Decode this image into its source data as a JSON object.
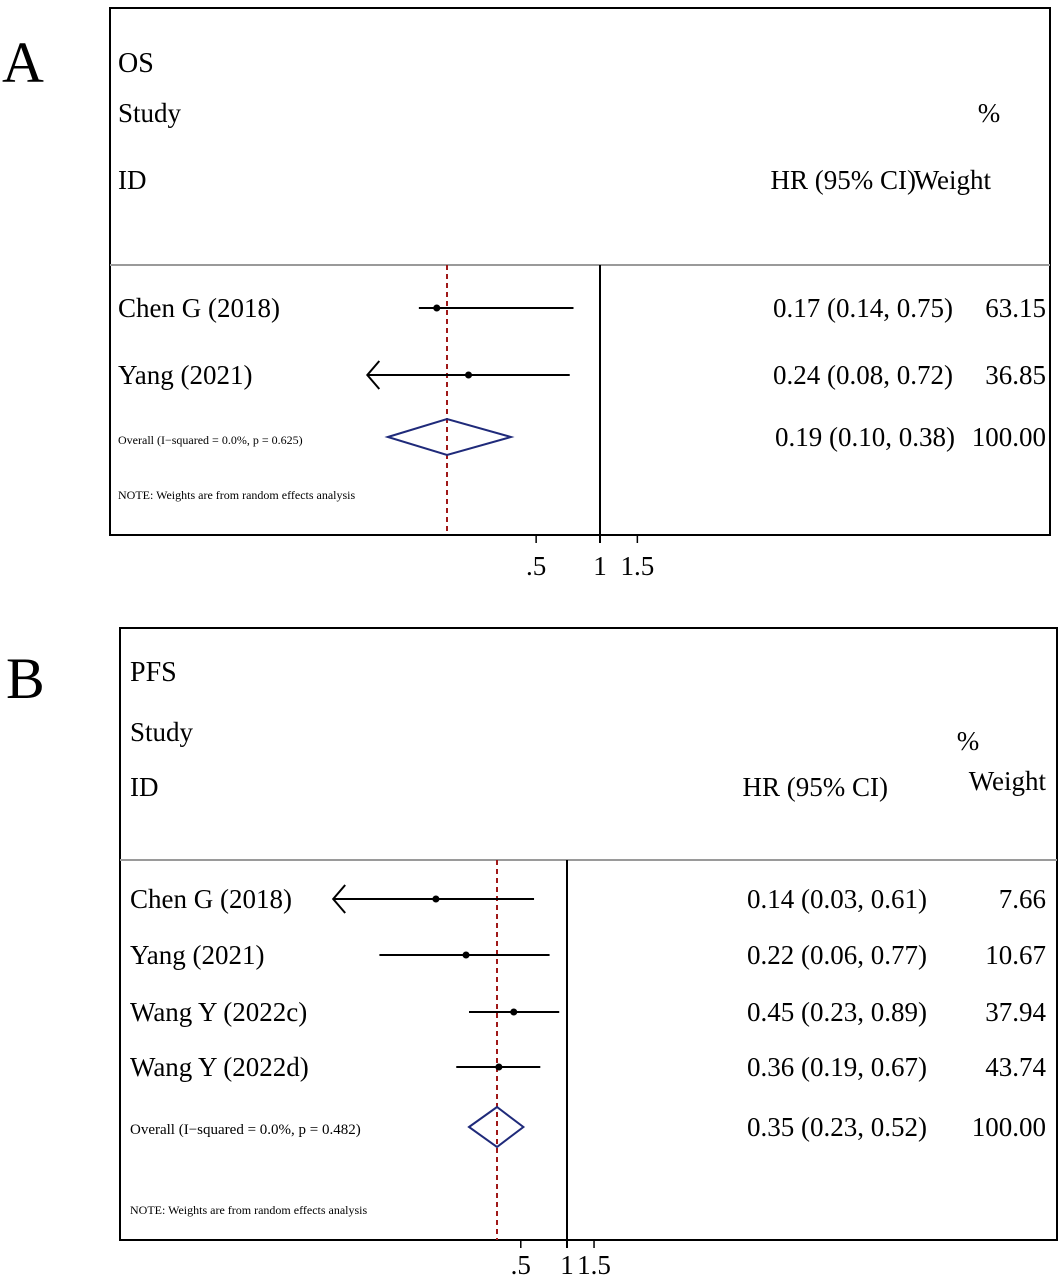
{
  "chart_data": [
    {
      "type": "forest",
      "panel_label": "A",
      "title": "OS",
      "header": {
        "study_line1": "Study",
        "study_line2": "ID",
        "hr_label": "HR (95% CI)",
        "weight_line1": "%",
        "weight_line2": "Weight"
      },
      "studies": [
        {
          "name": "Chen G (2018)",
          "hr": 0.17,
          "lower": 0.14,
          "upper": 0.75,
          "hr_text": "0.17 (0.14, 0.75)",
          "weight": "63.15"
        },
        {
          "name": "Yang (2021)",
          "hr": 0.24,
          "lower": 0.08,
          "upper": 0.72,
          "hr_text": "0.24 (0.08, 0.72)",
          "weight": "36.85",
          "lower_truncated": true
        }
      ],
      "overall": {
        "label": "Overall  (I−squared = 0.0%, p = 0.625)",
        "hr": 0.19,
        "lower": 0.1,
        "upper": 0.38,
        "hr_text": "0.19 (0.10, 0.38)",
        "weight": "100.00"
      },
      "note": "NOTE: Weights are from random effects analysis",
      "x_ticks": [
        {
          "v": 0.5,
          "label": ".5"
        },
        {
          "v": 1,
          "label": "1"
        },
        {
          "v": 1.5,
          "label": "1.5"
        }
      ],
      "reference_value": 1
    },
    {
      "type": "forest",
      "panel_label": "B",
      "title": "PFS",
      "header": {
        "study_line1": "Study",
        "study_line2": "ID",
        "hr_label": "HR (95% CI)",
        "weight_line1": "%",
        "weight_line2": "Weight"
      },
      "studies": [
        {
          "name": "Chen G (2018)",
          "hr": 0.14,
          "lower": 0.03,
          "upper": 0.61,
          "hr_text": "0.14 (0.03, 0.61)",
          "weight": "7.66",
          "lower_truncated": true
        },
        {
          "name": "Yang (2021)",
          "hr": 0.22,
          "lower": 0.06,
          "upper": 0.77,
          "hr_text": "0.22 (0.06, 0.77)",
          "weight": "10.67"
        },
        {
          "name": "Wang Y (2022c)",
          "hr": 0.45,
          "lower": 0.23,
          "upper": 0.89,
          "hr_text": "0.45 (0.23, 0.89)",
          "weight": "37.94"
        },
        {
          "name": "Wang Y (2022d)",
          "hr": 0.36,
          "lower": 0.19,
          "upper": 0.67,
          "hr_text": "0.36 (0.19, 0.67)",
          "weight": "43.74"
        }
      ],
      "overall": {
        "label": "Overall  (I−squared = 0.0%, p = 0.482)",
        "hr": 0.35,
        "lower": 0.23,
        "upper": 0.52,
        "hr_text": "0.35 (0.23, 0.52)",
        "weight": "100.00"
      },
      "note": "NOTE: Weights are from random effects analysis",
      "x_ticks": [
        {
          "v": 0.5,
          "label": ".5"
        },
        {
          "v": 1,
          "label": "1"
        },
        {
          "v": 1.5,
          "label": "1.5"
        }
      ],
      "reference_value": 1
    }
  ],
  "colors": {
    "overall_diamond": "#1f2a7a",
    "reference_dashed": "#a01818",
    "line": "#000000"
  }
}
